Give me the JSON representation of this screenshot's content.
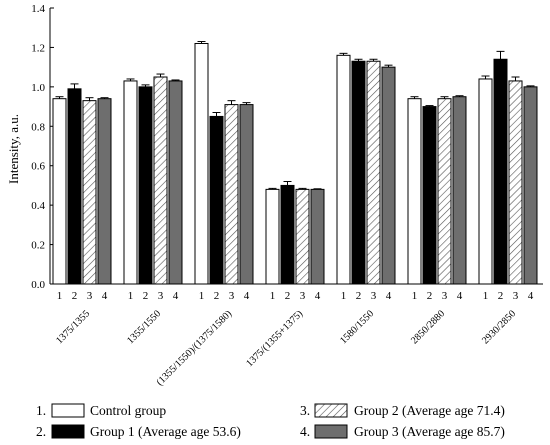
{
  "chart_data": {
    "type": "bar",
    "ylabel": "Intensity, a.u.",
    "ylim": [
      0,
      1.4
    ],
    "yticks": [
      "0.0",
      "0.2",
      "0.4",
      "0.6",
      "0.8",
      "1.0",
      "1.2",
      "1.4"
    ],
    "groups": [
      "1375/1355",
      "1355/1550",
      "(1355/1550)/(1375/1580)",
      "1375/(1355+1375)",
      "1580/1550",
      "2850/2880",
      "2930/2850"
    ],
    "bar_numbers": [
      "1",
      "2",
      "3",
      "4"
    ],
    "series": [
      {
        "key": "1.",
        "name": "Control group",
        "color": "#ffffff",
        "pattern": "none",
        "values": [
          0.94,
          1.03,
          1.22,
          0.48,
          1.16,
          0.94,
          1.04
        ],
        "errors": [
          0.01,
          0.01,
          0.01,
          0.005,
          0.01,
          0.01,
          0.015
        ]
      },
      {
        "key": "2.",
        "name": "Group 1 (Average age 53.6)",
        "color": "#000000",
        "pattern": "none",
        "values": [
          0.99,
          1.0,
          0.85,
          0.5,
          1.13,
          0.9,
          1.14
        ],
        "errors": [
          0.025,
          0.01,
          0.02,
          0.02,
          0.01,
          0.005,
          0.04
        ]
      },
      {
        "key": "3.",
        "name": "Group 2 (Average age 71.4)",
        "color": "#ffffff",
        "pattern": "hatch",
        "values": [
          0.93,
          1.05,
          0.91,
          0.48,
          1.13,
          0.94,
          1.03
        ],
        "errors": [
          0.015,
          0.015,
          0.02,
          0.005,
          0.01,
          0.01,
          0.02
        ]
      },
      {
        "key": "4.",
        "name": "Group 3 (Average age 85.7)",
        "color": "#6e6e6e",
        "pattern": "none",
        "values": [
          0.94,
          1.03,
          0.91,
          0.48,
          1.1,
          0.95,
          1.0
        ],
        "errors": [
          0.005,
          0.005,
          0.01,
          0.003,
          0.01,
          0.005,
          0.005
        ]
      }
    ],
    "grid": false,
    "legend_position": "bottom"
  }
}
